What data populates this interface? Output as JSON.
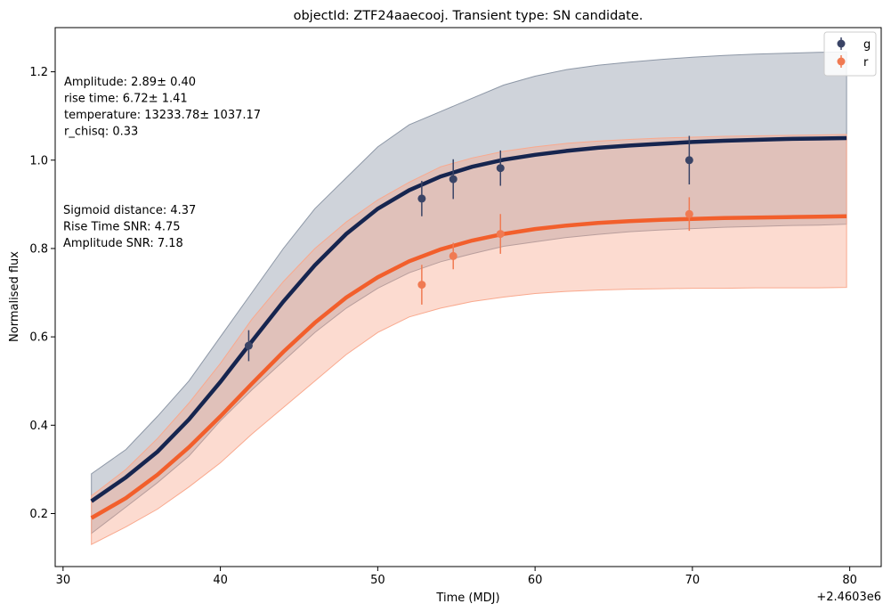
{
  "chart_data": {
    "type": "line",
    "title": "objectId: ZTF24aaecooj. Transient type: SN candidate.",
    "xlabel": "Time (MDJ)",
    "ylabel": "Normalised flux",
    "x_offset_label": "+2.4603e6",
    "xlim": [
      29.5,
      82
    ],
    "ylim": [
      0.08,
      1.3
    ],
    "x_ticks": [
      30,
      40,
      50,
      60,
      70,
      80
    ],
    "y_ticks": [
      0.2,
      0.4,
      0.6,
      0.8,
      1.0,
      1.2
    ],
    "x_tick_labels": [
      "30",
      "40",
      "50",
      "60",
      "70",
      "80"
    ],
    "y_tick_labels": [
      "0.2",
      "0.4",
      "0.6",
      "0.8",
      "1.0",
      "1.2"
    ],
    "grid": false,
    "legend_position": "top-right",
    "colors": {
      "g": "#16254f",
      "r": "#f25f2c",
      "g_band": "#8d97a6",
      "r_band": "#f9a98e"
    },
    "series": [
      {
        "name": "g",
        "points": [
          {
            "x": 41.8,
            "y": 0.58,
            "err": 0.035
          },
          {
            "x": 52.8,
            "y": 0.913,
            "err": 0.04
          },
          {
            "x": 54.8,
            "y": 0.957,
            "err": 0.045
          },
          {
            "x": 57.8,
            "y": 0.982,
            "err": 0.04
          },
          {
            "x": 69.8,
            "y": 1.0,
            "err": 0.055
          }
        ],
        "fit": {
          "x": [
            31.8,
            34,
            36,
            38,
            40,
            42,
            44,
            46,
            48,
            50,
            52,
            54,
            56,
            58,
            60,
            62,
            64,
            66,
            68,
            70,
            72,
            74,
            76,
            78,
            79.8
          ],
          "y": [
            0.228,
            0.282,
            0.34,
            0.413,
            0.498,
            0.59,
            0.68,
            0.762,
            0.833,
            0.89,
            0.932,
            0.963,
            0.985,
            1.001,
            1.012,
            1.021,
            1.028,
            1.033,
            1.037,
            1.041,
            1.044,
            1.046,
            1.048,
            1.049,
            1.05
          ]
        },
        "band_upper": {
          "x": [
            31.8,
            34,
            36,
            38,
            40,
            42,
            44,
            46,
            48,
            50,
            52,
            54,
            56,
            58,
            60,
            62,
            64,
            66,
            68,
            70,
            72,
            74,
            76,
            78,
            79.8
          ],
          "y": [
            0.29,
            0.345,
            0.42,
            0.5,
            0.6,
            0.7,
            0.8,
            0.89,
            0.96,
            1.03,
            1.08,
            1.11,
            1.14,
            1.17,
            1.19,
            1.205,
            1.215,
            1.222,
            1.228,
            1.233,
            1.237,
            1.24,
            1.242,
            1.244,
            1.245
          ]
        },
        "band_lower": {
          "x": [
            31.8,
            34,
            36,
            38,
            40,
            42,
            44,
            46,
            48,
            50,
            52,
            54,
            56,
            58,
            60,
            62,
            64,
            66,
            68,
            70,
            72,
            74,
            76,
            78,
            79.8
          ],
          "y": [
            0.155,
            0.215,
            0.27,
            0.33,
            0.41,
            0.48,
            0.545,
            0.61,
            0.665,
            0.71,
            0.745,
            0.77,
            0.788,
            0.805,
            0.815,
            0.825,
            0.832,
            0.838,
            0.842,
            0.845,
            0.848,
            0.85,
            0.852,
            0.853,
            0.855
          ]
        }
      },
      {
        "name": "r",
        "points": [
          {
            "x": 52.8,
            "y": 0.718,
            "err": 0.045
          },
          {
            "x": 54.8,
            "y": 0.783,
            "err": 0.03
          },
          {
            "x": 57.8,
            "y": 0.833,
            "err": 0.045
          },
          {
            "x": 69.8,
            "y": 0.878,
            "err": 0.038
          }
        ],
        "fit": {
          "x": [
            31.8,
            34,
            36,
            38,
            40,
            42,
            44,
            46,
            48,
            50,
            52,
            54,
            56,
            58,
            60,
            62,
            64,
            66,
            68,
            70,
            72,
            74,
            76,
            78,
            79.8
          ],
          "y": [
            0.19,
            0.235,
            0.288,
            0.35,
            0.42,
            0.494,
            0.566,
            0.632,
            0.689,
            0.735,
            0.771,
            0.798,
            0.818,
            0.833,
            0.844,
            0.852,
            0.858,
            0.862,
            0.865,
            0.867,
            0.869,
            0.87,
            0.871,
            0.872,
            0.873
          ]
        },
        "band_upper": {
          "x": [
            31.8,
            34,
            36,
            38,
            40,
            42,
            44,
            46,
            48,
            50,
            52,
            54,
            56,
            58,
            60,
            62,
            64,
            66,
            68,
            70,
            72,
            74,
            76,
            78,
            79.8
          ],
          "y": [
            0.24,
            0.3,
            0.37,
            0.45,
            0.54,
            0.64,
            0.725,
            0.8,
            0.86,
            0.91,
            0.95,
            0.985,
            1.005,
            1.02,
            1.03,
            1.038,
            1.043,
            1.047,
            1.05,
            1.052,
            1.054,
            1.055,
            1.056,
            1.057,
            1.058
          ]
        },
        "band_lower": {
          "x": [
            31.8,
            34,
            36,
            38,
            40,
            42,
            44,
            46,
            48,
            50,
            52,
            54,
            56,
            58,
            60,
            62,
            64,
            66,
            68,
            70,
            72,
            74,
            76,
            78,
            79.8
          ],
          "y": [
            0.13,
            0.17,
            0.21,
            0.26,
            0.315,
            0.38,
            0.44,
            0.5,
            0.56,
            0.61,
            0.645,
            0.665,
            0.68,
            0.69,
            0.698,
            0.703,
            0.706,
            0.708,
            0.709,
            0.71,
            0.71,
            0.711,
            0.711,
            0.711,
            0.712
          ]
        }
      }
    ],
    "annotations_top": [
      "Amplitude: 2.89± 0.40",
      "rise time: 6.72± 1.41",
      "temperature: 13233.78± 1037.17",
      "r_chisq: 0.33"
    ],
    "annotations_mid": [
      "Sigmoid distance: 4.37",
      "Rise Time SNR: 4.75",
      "Amplitude SNR: 7.18"
    ]
  }
}
